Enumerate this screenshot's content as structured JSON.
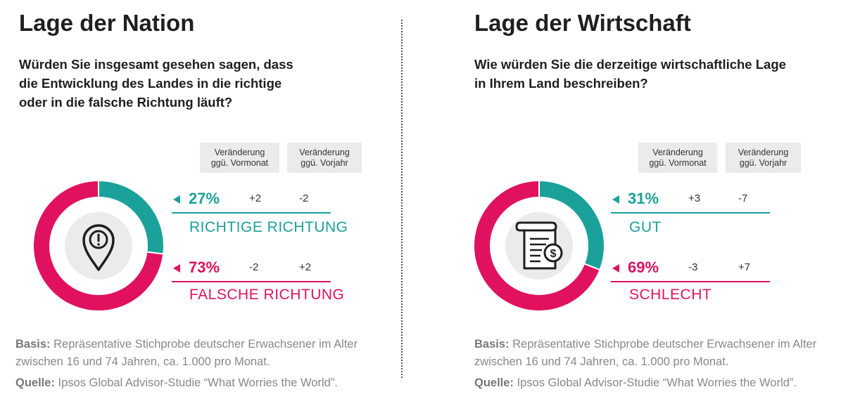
{
  "colors": {
    "teal": "#1aa19a",
    "pink": "#e0115f",
    "icon_bg": "#ebebeb",
    "icon": "#1f1f1f"
  },
  "col_heads": {
    "vormonat": "Veränderung\nggü. Vormonat",
    "vorjahr": "Veränderung\nggü. Vorjahr"
  },
  "footer": {
    "basis_label": "Basis:",
    "basis_text": "Repräsentative Stichprobe deutscher Erwachsener im Alter zwischen 16 und 74 Jahren, ca. 1.000 pro Monat.",
    "quelle_label": "Quelle:",
    "quelle_text": "Ipsos Global Advisor-Studie “What Worries the World”."
  },
  "chart_data": [
    {
      "type": "pie",
      "title": "Lage der Nation",
      "question": "Würden Sie insgesamt gesehen sagen, dass die Entwicklung des Landes in die richtige oder in die falsche Richtung läuft?",
      "icon": "location-alert-icon",
      "categories": [
        "RICHTIGE RICHTUNG",
        "FALSCHE RICHTUNG"
      ],
      "values": [
        27,
        73
      ],
      "labels": [
        "27%",
        "73%"
      ],
      "change_vs_prev_month": [
        "+2",
        "-2"
      ],
      "change_vs_prev_year": [
        "-2",
        "+2"
      ],
      "colors": [
        "#1aa19a",
        "#e0115f"
      ]
    },
    {
      "type": "pie",
      "title": "Lage der Wirtschaft",
      "question": "Wie würden Sie die derzeitige wirtschaftliche Lage in Ihrem Land beschreiben?",
      "icon": "invoice-dollar-icon",
      "categories": [
        "GUT",
        "SCHLECHT"
      ],
      "values": [
        31,
        69
      ],
      "labels": [
        "31%",
        "69%"
      ],
      "change_vs_prev_month": [
        "+3",
        "-3"
      ],
      "change_vs_prev_year": [
        "-7",
        "+7"
      ],
      "colors": [
        "#1aa19a",
        "#e0115f"
      ]
    }
  ]
}
